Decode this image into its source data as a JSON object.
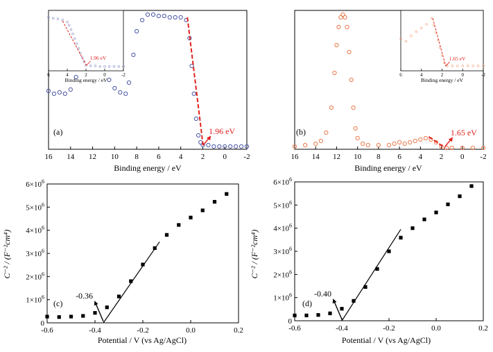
{
  "chart_data": [
    {
      "id": "a",
      "type": "scatter",
      "panel_label": "(a)",
      "xlabel": "Binding energy / eV",
      "ylabel": "",
      "xlim": [
        16,
        -2
      ],
      "ylim": [
        0,
        1
      ],
      "x_ticks": [
        "16",
        "14",
        "12",
        "10",
        "8",
        "6",
        "4",
        "2",
        "0",
        "-2"
      ],
      "y_ticks": [],
      "grid": false,
      "marker_color": "#4a56a6",
      "series": [
        {
          "x": [
            16,
            15.5,
            15,
            14.5,
            14,
            13.5,
            13,
            12.5,
            12,
            11.5,
            11,
            10.5,
            10,
            9.5,
            9,
            8.7,
            8.3,
            8,
            7.5,
            7,
            6.5,
            6,
            5.5,
            5,
            4.5,
            4,
            3.5,
            3.2,
            3,
            2.8,
            2.6,
            2.4,
            2.2,
            2,
            1.5,
            1,
            0.5,
            0,
            -0.5,
            -1,
            -1.5,
            -2
          ],
          "values": [
            0.42,
            0.4,
            0.41,
            0.4,
            0.43,
            0.52,
            0.62,
            0.69,
            0.71,
            0.69,
            0.6,
            0.5,
            0.44,
            0.41,
            0.4,
            0.48,
            0.68,
            0.85,
            0.93,
            0.97,
            0.97,
            0.96,
            0.96,
            0.95,
            0.95,
            0.95,
            0.93,
            0.8,
            0.6,
            0.4,
            0.22,
            0.1,
            0.05,
            0.03,
            0.03,
            0.02,
            0.02,
            0.02,
            0.02,
            0.02,
            0.02,
            0.02
          ]
        }
      ],
      "fit_line": {
        "x": [
          3.4,
          1.96
        ],
        "y": [
          0.95,
          0.02
        ],
        "color": "#e0201b"
      },
      "annotations": [
        {
          "text": "1.96 eV",
          "x": 1.96,
          "y": 0.02,
          "color": "#e0201b"
        }
      ],
      "inset": {
        "xlim": [
          6,
          -2
        ],
        "x_ticks": [
          "6",
          "4",
          "2",
          "0",
          "-2"
        ],
        "xlabel": "Binding energy / eV",
        "x": [
          6,
          5.5,
          5,
          4.5,
          4,
          3.8,
          3.6,
          3.4,
          3.2,
          3,
          2.8,
          2.6,
          2.4,
          2.2,
          2,
          1.5,
          1,
          0.5,
          0,
          -0.5,
          -1,
          -1.5,
          -2
        ],
        "values": [
          0.95,
          0.93,
          0.92,
          0.9,
          0.86,
          0.8,
          0.72,
          0.64,
          0.55,
          0.46,
          0.37,
          0.28,
          0.2,
          0.12,
          0.05,
          0.04,
          0.04,
          0.03,
          0.03,
          0.03,
          0.03,
          0.03,
          0.03
        ],
        "marker_color": "#9aa0cf",
        "fit_line": {
          "x": [
            4.5,
            1.96
          ],
          "y": [
            0.88,
            0.05
          ],
          "color": "#e0201b"
        },
        "annotation": {
          "text": "1.96 eV",
          "x": 1.96,
          "y": 0.05,
          "color": "#e0201b"
        }
      }
    },
    {
      "id": "b",
      "type": "scatter",
      "panel_label": "(b)",
      "xlabel": "Binding energy / eV",
      "ylabel": "",
      "xlim": [
        16,
        -2
      ],
      "ylim": [
        0,
        1
      ],
      "x_ticks": [
        "16",
        "14",
        "12",
        "10",
        "8",
        "6",
        "4",
        "2",
        "0",
        "-2"
      ],
      "y_ticks": [],
      "grid": false,
      "marker_color": "#e8794a",
      "series": [
        {
          "x": [
            16,
            15,
            14,
            13.5,
            13,
            12.5,
            12.2,
            12,
            11.8,
            11.6,
            11.4,
            11.2,
            11,
            10.8,
            10.6,
            10.4,
            10.2,
            10,
            9.5,
            9,
            8,
            7,
            6.5,
            6,
            5.5,
            5,
            4.5,
            4,
            3.5,
            3,
            2.5,
            2,
            1.5,
            1,
            0,
            -1,
            -2
          ],
          "values": [
            0.02,
            0.03,
            0.04,
            0.06,
            0.12,
            0.3,
            0.55,
            0.75,
            0.88,
            0.95,
            0.97,
            0.95,
            0.88,
            0.7,
            0.5,
            0.3,
            0.15,
            0.08,
            0.04,
            0.03,
            0.03,
            0.03,
            0.04,
            0.05,
            0.04,
            0.05,
            0.06,
            0.07,
            0.08,
            0.07,
            0.05,
            0.02,
            0.01,
            0.01,
            0.01,
            0.01,
            0.01
          ]
        }
      ],
      "fit_line": {
        "x": [
          3.2,
          1.65
        ],
        "y": [
          0.09,
          0.01
        ],
        "color": "#e0201b"
      },
      "annotations": [
        {
          "text": "1.65 eV",
          "x": 1.65,
          "y": 0.01,
          "color": "#e0201b"
        }
      ],
      "inset": {
        "xlim": [
          6,
          -2
        ],
        "x_ticks": [
          "6",
          "4",
          "2",
          "0",
          "-2"
        ],
        "xlabel": "Binding energy / eV",
        "x": [
          6,
          5.5,
          5,
          4.5,
          4,
          3.5,
          3,
          2.8,
          2.6,
          2.4,
          2.2,
          2,
          1.8,
          1.6,
          1.5,
          1,
          0.5,
          0,
          -0.5,
          -1,
          -1.5,
          -2
        ],
        "values": [
          0.55,
          0.5,
          0.6,
          0.68,
          0.75,
          0.82,
          0.93,
          0.8,
          0.66,
          0.52,
          0.38,
          0.24,
          0.1,
          0.05,
          0.04,
          0.04,
          0.04,
          0.04,
          0.04,
          0.04,
          0.04,
          0.04
        ],
        "marker_color": "#f3b08e",
        "fit_line": {
          "x": [
            2.9,
            1.65
          ],
          "y": [
            0.93,
            0.04
          ],
          "color": "#e0201b"
        },
        "annotation": {
          "text": "1.65 eV",
          "x": 1.65,
          "y": 0.04,
          "color": "#e0201b"
        }
      }
    },
    {
      "id": "c",
      "type": "scatter",
      "panel_label": "(c)",
      "xlabel": "Potential / V (vs Ag/AgCl)",
      "ylabel": "C⁻² / (F⁻²cm⁴)",
      "xlim": [
        -0.6,
        0.2
      ],
      "ylim": [
        0,
        6000000
      ],
      "x_ticks": [
        "-0.6",
        "-0.4",
        "-0.2",
        "0.0",
        "0.2"
      ],
      "y_ticks": [
        "0",
        "1×10⁶",
        "2×10⁶",
        "3×10⁶",
        "4×10⁶",
        "5×10⁶",
        "6×10⁶"
      ],
      "grid": false,
      "marker_color": "#000000",
      "series": [
        {
          "x": [
            -0.6,
            -0.55,
            -0.5,
            -0.45,
            -0.4,
            -0.35,
            -0.3,
            -0.25,
            -0.2,
            -0.15,
            -0.1,
            -0.05,
            0.0,
            0.05,
            0.1,
            0.15
          ],
          "values": [
            270000,
            250000,
            270000,
            300000,
            430000,
            670000,
            1140000,
            1800000,
            2520000,
            3230000,
            3800000,
            4230000,
            4550000,
            4860000,
            5230000,
            5570000
          ]
        }
      ],
      "fit_line": {
        "x": [
          -0.365,
          -0.13
        ],
        "y": [
          0,
          3500000
        ],
        "color": "#000000"
      },
      "annotations": [
        {
          "text": "-0.36",
          "x": -0.365,
          "y": 0,
          "color": "#000000"
        }
      ]
    },
    {
      "id": "d",
      "type": "scatter",
      "panel_label": "(d)",
      "xlabel": "Potential / V (vs Ag/AgCl)",
      "ylabel": "C⁻² / (F⁻²cm⁴)",
      "xlim": [
        -0.6,
        0.2
      ],
      "ylim": [
        0,
        6000000
      ],
      "x_ticks": [
        "-0.6",
        "-0.4",
        "-0.2",
        "0.0",
        "0.2"
      ],
      "y_ticks": [
        "0",
        "1×10⁶",
        "2×10⁶",
        "3×10⁶",
        "4×10⁶",
        "5×10⁶",
        "6×10⁶"
      ],
      "grid": false,
      "marker_color": "#000000",
      "series": [
        {
          "x": [
            -0.6,
            -0.55,
            -0.5,
            -0.45,
            -0.4,
            -0.35,
            -0.3,
            -0.25,
            -0.2,
            -0.15,
            -0.1,
            -0.05,
            0.0,
            0.05,
            0.1,
            0.15
          ],
          "values": [
            230000,
            230000,
            250000,
            320000,
            520000,
            860000,
            1460000,
            2240000,
            3000000,
            3590000,
            4000000,
            4380000,
            4680000,
            5030000,
            5380000,
            5820000
          ]
        }
      ],
      "fit_line": {
        "x": [
          -0.4,
          -0.15
        ],
        "y": [
          0,
          3950000
        ],
        "color": "#000000"
      },
      "annotations": [
        {
          "text": "-0.40",
          "x": -0.4,
          "y": 0,
          "color": "#000000"
        }
      ]
    }
  ]
}
